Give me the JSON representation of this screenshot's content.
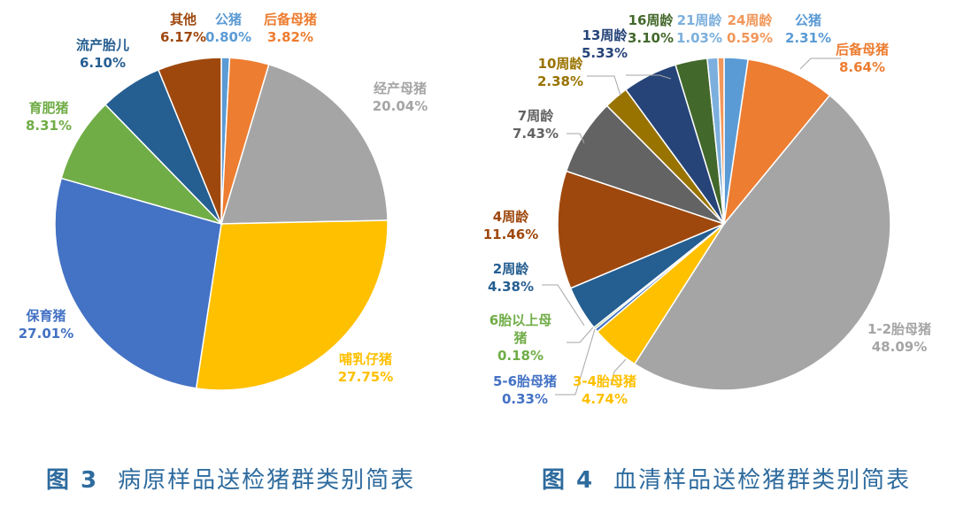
{
  "chart_data": [
    {
      "type": "pie",
      "caption_number": "图 3",
      "caption_title": "病原样品送检猪群类别简表",
      "slices": [
        {
          "label": "公猪",
          "value": 0.8,
          "value_text": "0.80%",
          "color": "#5b9bd5"
        },
        {
          "label": "后备母猪",
          "value": 3.82,
          "value_text": "3.82%",
          "color": "#ed7d31"
        },
        {
          "label": "经产母猪",
          "value": 20.04,
          "value_text": "20.04%",
          "color": "#a5a5a5"
        },
        {
          "label": "哺乳仔猪",
          "value": 27.75,
          "value_text": "27.75%",
          "color": "#ffc000"
        },
        {
          "label": "保育猪",
          "value": 27.01,
          "value_text": "27.01%",
          "color": "#4472c4"
        },
        {
          "label": "育肥猪",
          "value": 8.31,
          "value_text": "8.31%",
          "color": "#70ad47"
        },
        {
          "label": "流产胎儿",
          "value": 6.1,
          "value_text": "6.10%",
          "color": "#255e91"
        },
        {
          "label": "其他",
          "value": 6.17,
          "value_text": "6.17%",
          "color": "#9e480e"
        }
      ]
    },
    {
      "type": "pie",
      "caption_number": "图 4",
      "caption_title": "血清样品送检猪群类别简表",
      "slices": [
        {
          "label": "公猪",
          "value": 2.31,
          "value_text": "2.31%",
          "color": "#5b9bd5"
        },
        {
          "label": "后备母猪",
          "value": 8.64,
          "value_text": "8.64%",
          "color": "#ed7d31"
        },
        {
          "label": "1-2胎母猪",
          "value": 48.09,
          "value_text": "48.09%",
          "color": "#a5a5a5"
        },
        {
          "label": "3-4胎母猪",
          "value": 4.74,
          "value_text": "4.74%",
          "color": "#ffc000"
        },
        {
          "label": "5-6胎母猪",
          "value": 0.33,
          "value_text": "0.33%",
          "color": "#4472c4"
        },
        {
          "label": "6胎以上母\n猪",
          "value": 0.18,
          "value_text": "0.18%",
          "color": "#70ad47"
        },
        {
          "label": "2周龄",
          "value": 4.38,
          "value_text": "4.38%",
          "color": "#255e91"
        },
        {
          "label": "4周龄",
          "value": 11.46,
          "value_text": "11.46%",
          "color": "#9e480e"
        },
        {
          "label": "7周龄",
          "value": 7.43,
          "value_text": "7.43%",
          "color": "#636363"
        },
        {
          "label": "10周龄",
          "value": 2.38,
          "value_text": "2.38%",
          "color": "#997300"
        },
        {
          "label": "13周龄",
          "value": 5.33,
          "value_text": "5.33%",
          "color": "#264478"
        },
        {
          "label": "16周龄",
          "value": 3.1,
          "value_text": "3.10%",
          "color": "#43682b"
        },
        {
          "label": "21周龄",
          "value": 1.03,
          "value_text": "1.03%",
          "color": "#7cafdd"
        },
        {
          "label": "24周龄",
          "value": 0.59,
          "value_text": "0.59%",
          "color": "#f1975a"
        }
      ]
    }
  ]
}
